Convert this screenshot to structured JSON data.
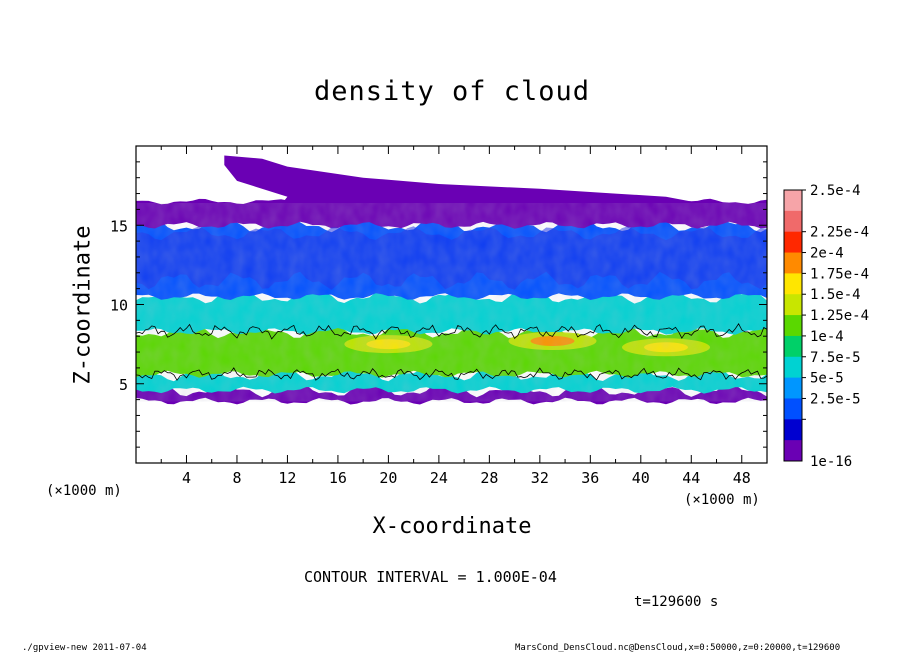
{
  "chart_data": {
    "type": "heatmap",
    "title": "density of cloud",
    "xlabel": "X-coordinate",
    "ylabel": "Z-coordinate",
    "x_unit": "(×1000 m)",
    "z_unit": "(×1000 m)",
    "xlim": [
      0,
      50
    ],
    "zlim": [
      0,
      20
    ],
    "x_ticks": [
      "4",
      "8",
      "12",
      "16",
      "20",
      "24",
      "28",
      "32",
      "36",
      "40",
      "44",
      "48"
    ],
    "z_ticks": [
      "5",
      "10",
      "15"
    ],
    "colorbar_labels": [
      "2.5e-4",
      "2.25e-4",
      "2e-4",
      "1.75e-4",
      "1.5e-4",
      "1.25e-4",
      "1e-4",
      "7.5e-5",
      "5e-5",
      "2.5e-5",
      "1e-16"
    ],
    "colorbar_colors": [
      "#f6a4a8",
      "#f06a6a",
      "#ff2800",
      "#ff8a00",
      "#ffe600",
      "#c8e600",
      "#5ad800",
      "#00d068",
      "#00d2d2",
      "#0096ff",
      "#0050ff",
      "#0000d0",
      "#6a00b4"
    ],
    "layers": [
      {
        "z_min": 3.9,
        "z_max": 4.6,
        "level": "1e-16 to 2.5e-5"
      },
      {
        "z_min": 4.6,
        "z_max": 5.6,
        "level": "5e-5 to 7.5e-5"
      },
      {
        "z_min": 5.6,
        "z_max": 8.3,
        "level": "1e-4 to 1.75e-4"
      },
      {
        "z_min": 8.3,
        "z_max": 10.5,
        "level": "5e-5 to 7.5e-5"
      },
      {
        "z_min": 10.5,
        "z_max": 15.0,
        "level": "2.5e-5 to 5e-5"
      },
      {
        "z_min": 15.0,
        "z_max": 16.5,
        "level": "1e-16 to 2.5e-5"
      }
    ],
    "max_regions": [
      {
        "x_center": 20,
        "z_center": 7.5,
        "level": "1.75e-4"
      },
      {
        "x_center": 33,
        "z_center": 7.7,
        "level": "2e-4"
      },
      {
        "x_center": 42,
        "z_center": 7.3,
        "level": "1.75e-4"
      }
    ]
  },
  "notes": {
    "contour_interval": "CONTOUR INTERVAL = 1.000E-04",
    "time": "t=129600 s",
    "footer_left": "./gpview-new   2011-07-04",
    "footer_right": "MarsCond_DensCloud.nc@DensCloud,x=0:50000,z=0:20000,t=129600"
  }
}
